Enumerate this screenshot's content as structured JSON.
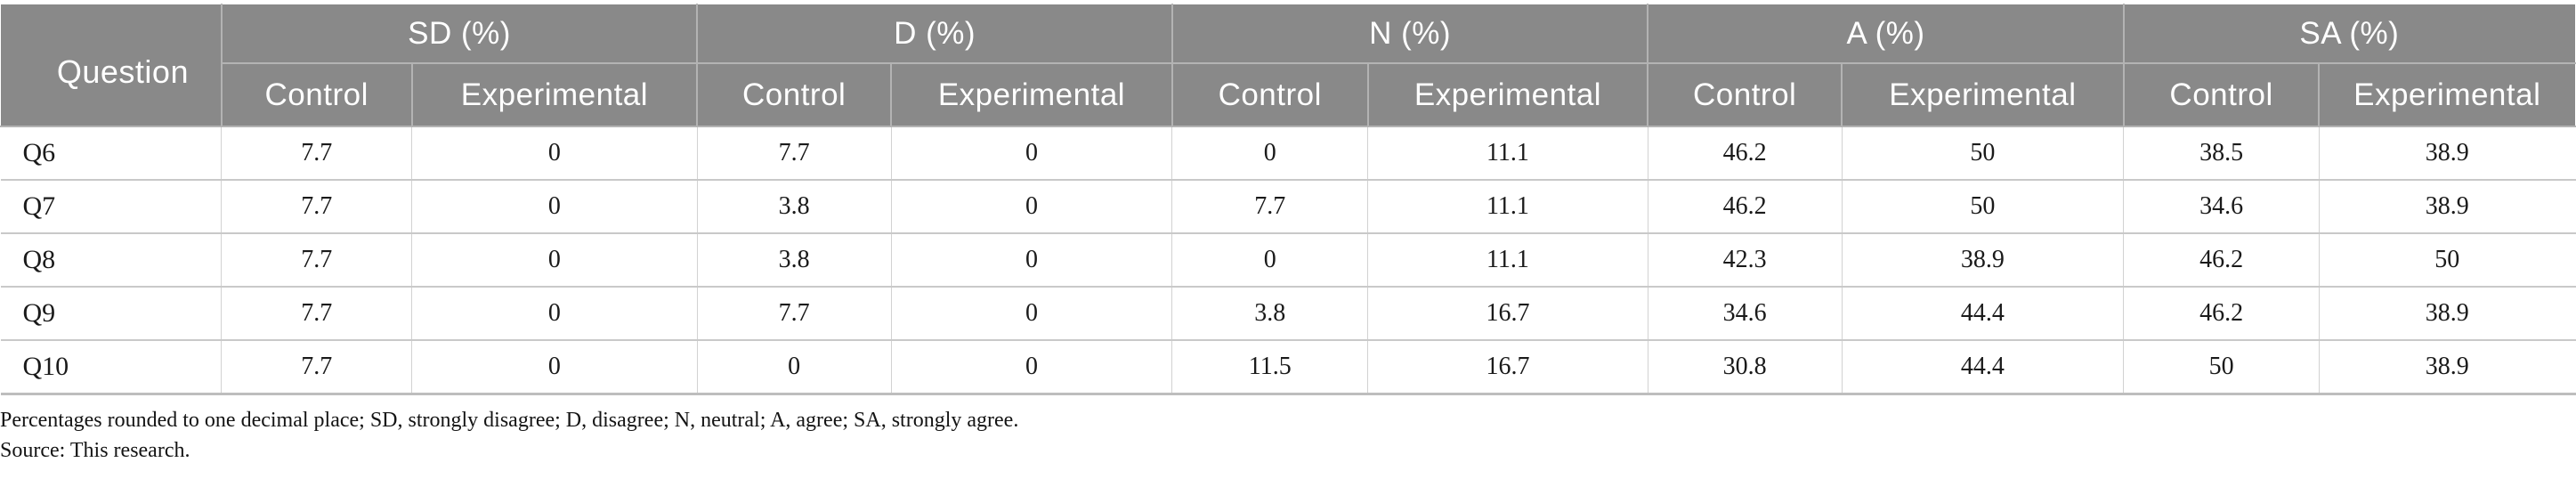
{
  "table": {
    "question_header": "Question",
    "groups": [
      {
        "label": "SD (%)"
      },
      {
        "label": "D (%)"
      },
      {
        "label": "N (%)"
      },
      {
        "label": "A (%)"
      },
      {
        "label": "SA (%)"
      }
    ],
    "subheaders": [
      "Control",
      "Experimental"
    ],
    "rows": [
      {
        "question": "Q6",
        "values": [
          "7.7",
          "0",
          "7.7",
          "0",
          "0",
          "11.1",
          "46.2",
          "50",
          "38.5",
          "38.9"
        ]
      },
      {
        "question": "Q7",
        "values": [
          "7.7",
          "0",
          "3.8",
          "0",
          "7.7",
          "11.1",
          "46.2",
          "50",
          "34.6",
          "38.9"
        ]
      },
      {
        "question": "Q8",
        "values": [
          "7.7",
          "0",
          "3.8",
          "0",
          "0",
          "11.1",
          "42.3",
          "38.9",
          "46.2",
          "50"
        ]
      },
      {
        "question": "Q9",
        "values": [
          "7.7",
          "0",
          "7.7",
          "0",
          "3.8",
          "16.7",
          "34.6",
          "44.4",
          "46.2",
          "38.9"
        ]
      },
      {
        "question": "Q10",
        "values": [
          "7.7",
          "0",
          "0",
          "0",
          "11.5",
          "16.7",
          "30.8",
          "44.4",
          "50",
          "38.9"
        ]
      }
    ]
  },
  "footnotes": {
    "line1": "Percentages rounded to one decimal place; SD, strongly disagree; D, disagree; N, neutral; A, agree; SA, strongly agree.",
    "line2": "Source: This research."
  },
  "colors": {
    "header_bg": "#898989",
    "header_text": "#ffffff",
    "header_divider": "#b3b3b3",
    "body_border": "#c9c9c9",
    "body_text": "#1a1a1a"
  }
}
